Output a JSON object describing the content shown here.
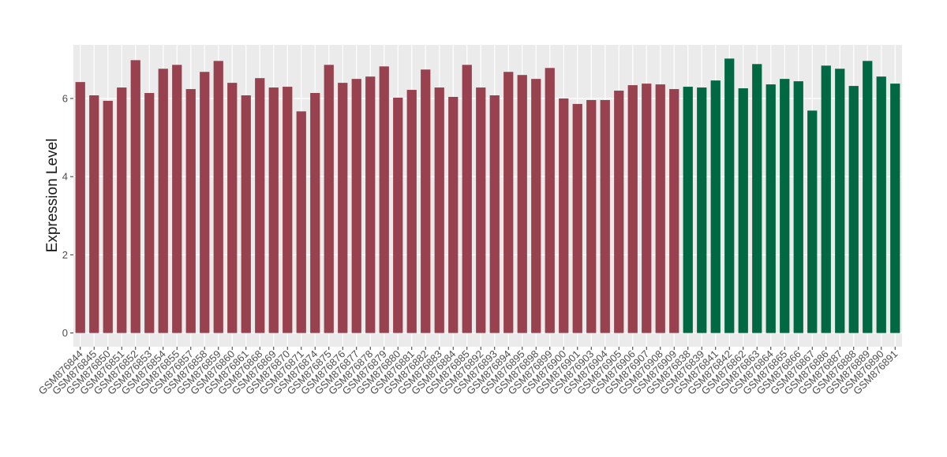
{
  "chart_data": {
    "type": "bar",
    "y_label": "Expression Level",
    "categories": [
      "GSM876844",
      "GSM876845",
      "GSM876850",
      "GSM876851",
      "GSM876852",
      "GSM876853",
      "GSM876854",
      "GSM876855",
      "GSM876857",
      "GSM876858",
      "GSM876859",
      "GSM876860",
      "GSM876861",
      "GSM876868",
      "GSM876869",
      "GSM876870",
      "GSM876871",
      "GSM876874",
      "GSM876875",
      "GSM876876",
      "GSM876877",
      "GSM876878",
      "GSM876879",
      "GSM876880",
      "GSM876881",
      "GSM876882",
      "GSM876883",
      "GSM876884",
      "GSM876885",
      "GSM876892",
      "GSM876893",
      "GSM876894",
      "GSM876895",
      "GSM876898",
      "GSM876899",
      "GSM876900",
      "GSM876901",
      "GSM876903",
      "GSM876904",
      "GSM876905",
      "GSM876906",
      "GSM876907",
      "GSM876908",
      "GSM876909",
      "GSM876838",
      "GSM876839",
      "GSM876841",
      "GSM876842",
      "GSM876862",
      "GSM876863",
      "GSM876864",
      "GSM876865",
      "GSM876866",
      "GSM876867",
      "GSM876886",
      "GSM876887",
      "GSM876888",
      "GSM876889",
      "GSM876890",
      "GSM876891"
    ],
    "values": [
      6.42,
      6.08,
      5.94,
      6.28,
      6.98,
      6.14,
      6.76,
      6.86,
      6.24,
      6.68,
      6.96,
      6.4,
      6.08,
      6.52,
      6.28,
      6.3,
      5.67,
      6.14,
      6.86,
      6.4,
      6.5,
      6.56,
      6.82,
      6.02,
      6.22,
      6.74,
      6.28,
      6.04,
      6.86,
      6.28,
      6.08,
      6.68,
      6.6,
      6.5,
      6.78,
      6.0,
      5.86,
      5.96,
      5.96,
      6.2,
      6.34,
      6.38,
      6.36,
      6.24,
      6.3,
      6.28,
      6.46,
      7.02,
      6.26,
      6.88,
      6.36,
      6.5,
      6.44,
      5.69,
      6.84,
      6.76,
      6.32,
      6.96,
      6.56,
      6.38
    ],
    "colors": [
      "#97424e",
      "#97424e",
      "#97424e",
      "#97424e",
      "#97424e",
      "#97424e",
      "#97424e",
      "#97424e",
      "#97424e",
      "#97424e",
      "#97424e",
      "#97424e",
      "#97424e",
      "#97424e",
      "#97424e",
      "#97424e",
      "#97424e",
      "#97424e",
      "#97424e",
      "#97424e",
      "#97424e",
      "#97424e",
      "#97424e",
      "#97424e",
      "#97424e",
      "#97424e",
      "#97424e",
      "#97424e",
      "#97424e",
      "#97424e",
      "#97424e",
      "#97424e",
      "#97424e",
      "#97424e",
      "#97424e",
      "#97424e",
      "#97424e",
      "#97424e",
      "#97424e",
      "#97424e",
      "#97424e",
      "#97424e",
      "#97424e",
      "#97424e",
      "#006843",
      "#006843",
      "#006843",
      "#006843",
      "#006843",
      "#006843",
      "#006843",
      "#006843",
      "#006843",
      "#006843",
      "#006843",
      "#006843",
      "#006843",
      "#006843",
      "#006843",
      "#006843"
    ],
    "ylim": [
      -0.35,
      7.37
    ],
    "yticks": [
      0,
      2,
      4,
      6
    ],
    "grid": true
  }
}
